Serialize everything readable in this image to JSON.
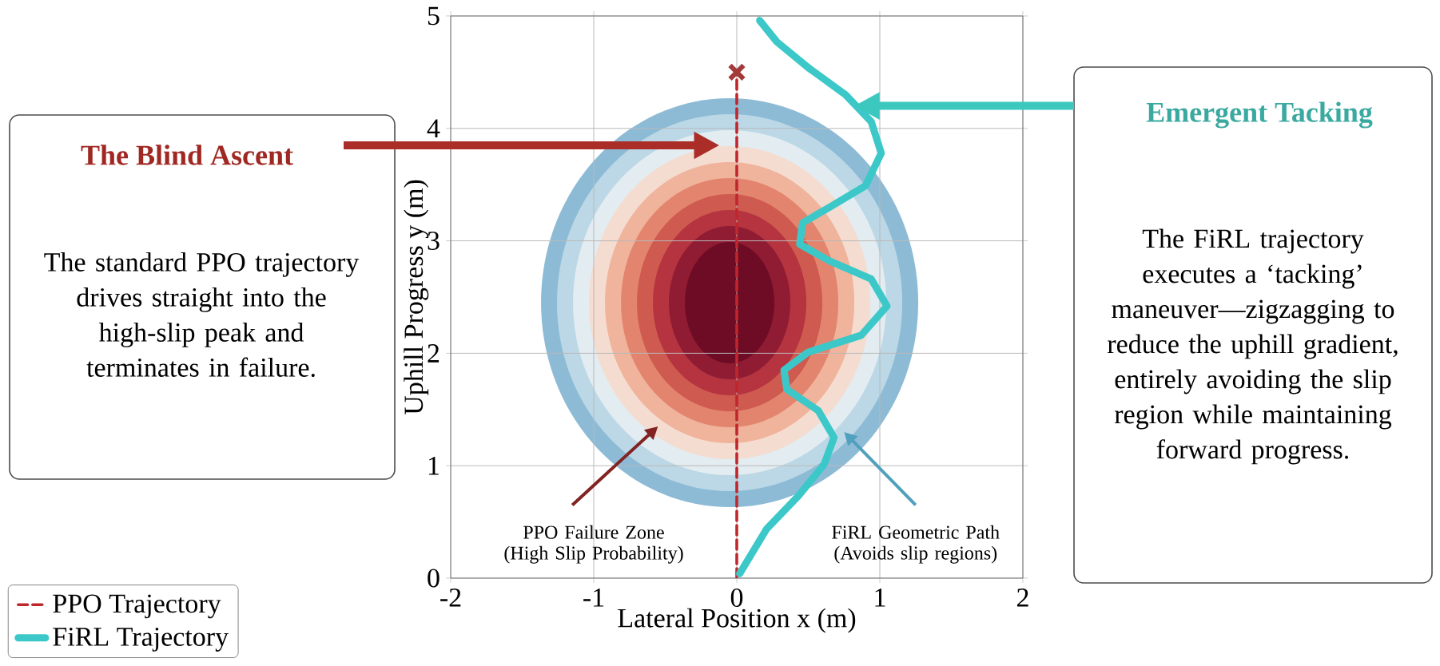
{
  "chart_data": {
    "type": "line",
    "xlabel": "Lateral Position x (m)",
    "ylabel": "Uphill Progress y (m)",
    "xlim": [
      -2,
      2
    ],
    "ylim": [
      0,
      5
    ],
    "xticks": [
      -2,
      -1,
      0,
      1,
      2
    ],
    "yticks": [
      0,
      1,
      2,
      3,
      4,
      5
    ],
    "grid": true,
    "legend": "bottom left",
    "series": [
      {
        "name": "PPO Trajectory",
        "color": "#c0272d",
        "line_style": "dashed",
        "x": [
          0,
          0
        ],
        "values": [
          0,
          4.5
        ]
      },
      {
        "name": "FiRL Trajectory",
        "color": "#3cc8c8",
        "line_style": "solid",
        "x": [
          0.02,
          0.21,
          0.43,
          0.61,
          0.68,
          0.57,
          0.35,
          0.33,
          0.5,
          0.87,
          1.05,
          0.94,
          0.65,
          0.44,
          0.46,
          0.65,
          0.9,
          1.01,
          0.94,
          0.76,
          0.5,
          0.28,
          0.16
        ],
        "values": [
          0.04,
          0.44,
          0.73,
          1.01,
          1.25,
          1.49,
          1.68,
          1.85,
          2.01,
          2.16,
          2.42,
          2.66,
          2.82,
          2.97,
          3.16,
          3.3,
          3.49,
          3.78,
          4.06,
          4.3,
          4.54,
          4.77,
          4.96
        ]
      },
      {
        "type": "scatter",
        "marker": "cross",
        "color": "#a33a3a",
        "x": [
          0
        ],
        "values": [
          4.5
        ]
      }
    ],
    "annotations": [
      "The Blind Ascent",
      "The standard PPO trajectory drives straight into the high-slip peak and terminates in failure.",
      "Emergent Tacking",
      "The FiRL trajectory executes a ‘tacking’ maneuver—zigzagging to reduce the uphill gradient, entirely avoiding the slip region while maintaining forward progress.",
      "PPO Failure Zone (High Slip Probability)",
      "FiRL Geometric Path (Avoids slip regions)"
    ]
  }
}
